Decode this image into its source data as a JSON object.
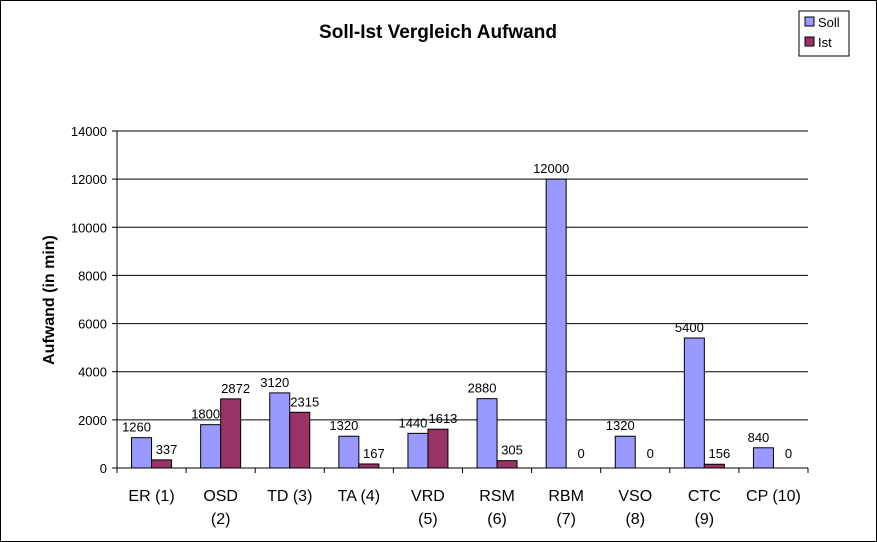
{
  "chart_data": {
    "type": "bar",
    "title": "Soll-Ist Vergleich Aufwand",
    "xlabel": "",
    "ylabel": "Aufwand (in min)",
    "ylim": [
      0,
      14000
    ],
    "yticks": [
      0,
      2000,
      4000,
      6000,
      8000,
      10000,
      12000,
      14000
    ],
    "grid": true,
    "legend_position": "top-right",
    "categories": [
      [
        "ER (1)"
      ],
      [
        "OSD",
        "(2)"
      ],
      [
        "TD (3)"
      ],
      [
        "TA (4)"
      ],
      [
        "VRD",
        "(5)"
      ],
      [
        "RSM",
        "(6)"
      ],
      [
        "RBM",
        "(7)"
      ],
      [
        "VSO",
        "(8)"
      ],
      [
        "CTC",
        "(9)"
      ],
      [
        "CP (10)"
      ]
    ],
    "series": [
      {
        "name": "Soll",
        "color": "#9999ff",
        "values": [
          1260,
          1800,
          3120,
          1320,
          1440,
          2880,
          12000,
          1320,
          5400,
          840
        ],
        "labels": [
          "1260",
          "1800",
          "3120",
          "1320",
          "1440",
          "2880",
          "12000",
          "1320",
          "5400",
          "840"
        ]
      },
      {
        "name": "Ist",
        "color": "#993366",
        "values": [
          337,
          2872,
          2315,
          167,
          1613,
          305,
          0,
          0,
          156,
          0
        ],
        "labels": [
          "337",
          "2872",
          "2315",
          "167",
          "1613",
          "305",
          "0",
          "0",
          "156",
          "0"
        ]
      }
    ]
  }
}
